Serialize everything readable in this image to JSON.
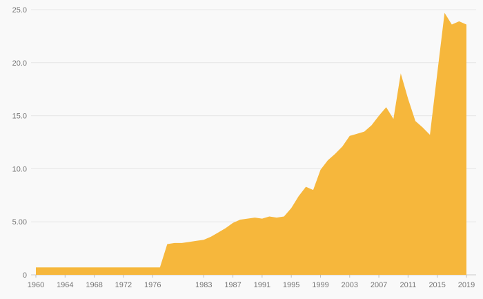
{
  "chart": {
    "area_color": "#f6b73c",
    "grid_color": "#e6e6e6",
    "axis_color": "#c9c9c9",
    "tick_color": "#bdbdbd",
    "label_color": "#757575",
    "background": "#f9f9f9"
  },
  "chart_data": {
    "type": "area",
    "title": "",
    "xlabel": "",
    "ylabel": "",
    "x": [
      1960,
      1961,
      1962,
      1963,
      1964,
      1965,
      1966,
      1967,
      1968,
      1969,
      1970,
      1971,
      1972,
      1973,
      1974,
      1975,
      1976,
      1977,
      1978,
      1979,
      1980,
      1981,
      1982,
      1983,
      1984,
      1985,
      1986,
      1987,
      1988,
      1989,
      1990,
      1991,
      1992,
      1993,
      1994,
      1995,
      1996,
      1997,
      1998,
      1999,
      2000,
      2001,
      2002,
      2003,
      2004,
      2005,
      2006,
      2007,
      2008,
      2009,
      2010,
      2011,
      2012,
      2013,
      2014,
      2015,
      2016,
      2017,
      2018,
      2019
    ],
    "values": [
      0.7,
      0.7,
      0.7,
      0.7,
      0.7,
      0.7,
      0.7,
      0.7,
      0.7,
      0.7,
      0.7,
      0.7,
      0.7,
      0.7,
      0.7,
      0.7,
      0.7,
      0.7,
      2.9,
      3.0,
      3.0,
      3.1,
      3.2,
      3.3,
      3.6,
      4.0,
      4.4,
      4.9,
      5.2,
      5.3,
      5.4,
      5.3,
      5.5,
      5.4,
      5.5,
      6.3,
      7.4,
      8.3,
      8.0,
      9.9,
      10.8,
      11.4,
      12.1,
      13.1,
      13.3,
      13.5,
      14.1,
      15.0,
      15.8,
      14.7,
      19.0,
      16.6,
      14.5,
      13.9,
      13.2,
      19.0,
      24.7,
      23.6,
      23.9,
      23.6
    ],
    "ylim": [
      0,
      25
    ],
    "grid": "horizontal",
    "legend": "none",
    "y_ticks": [
      {
        "value": 0,
        "label": "0"
      },
      {
        "value": 5,
        "label": "5.00"
      },
      {
        "value": 10,
        "label": "10.0"
      },
      {
        "value": 15,
        "label": "15.0"
      },
      {
        "value": 20,
        "label": "20.0"
      },
      {
        "value": 25,
        "label": "25.0"
      }
    ],
    "x_ticks": [
      {
        "value": 1960,
        "label": "1960"
      },
      {
        "value": 1964,
        "label": "1964"
      },
      {
        "value": 1968,
        "label": "1968"
      },
      {
        "value": 1972,
        "label": "1972"
      },
      {
        "value": 1976,
        "label": "1976"
      },
      {
        "value": 1983,
        "label": "1983"
      },
      {
        "value": 1987,
        "label": "1987"
      },
      {
        "value": 1991,
        "label": "1991"
      },
      {
        "value": 1995,
        "label": "1995"
      },
      {
        "value": 1999,
        "label": "1999"
      },
      {
        "value": 2003,
        "label": "2003"
      },
      {
        "value": 2007,
        "label": "2007"
      },
      {
        "value": 2011,
        "label": "2011"
      },
      {
        "value": 2015,
        "label": "2015"
      },
      {
        "value": 2019,
        "label": "2019"
      }
    ]
  }
}
